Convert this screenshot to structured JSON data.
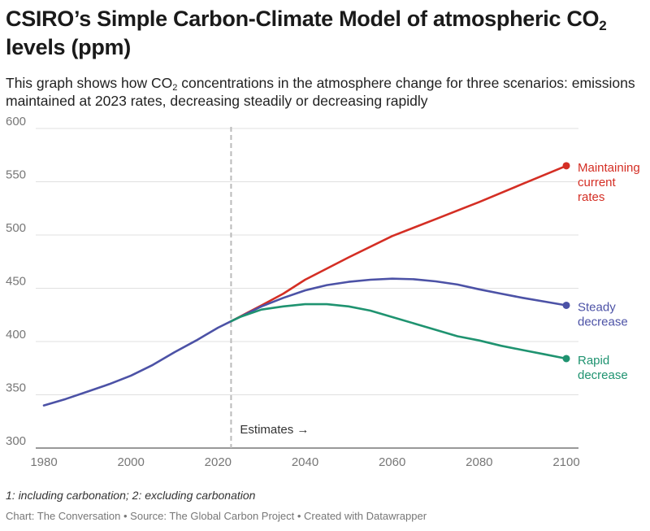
{
  "header": {
    "title_main": "CSIRO’s Simple Carbon-Climate Model of atmospheric CO",
    "title_sub": "2",
    "title_end": " levels (ppm)",
    "subtitle_a": "This graph shows how CO",
    "subtitle_sub": "2",
    "subtitle_b": " concentrations in the atmosphere change for three scenarios: emissions maintained at 2023 rates, decreasing steadily or decreasing rapidly"
  },
  "notes": "1: including carbonation; 2: excluding carbonation",
  "footer": "Chart: The Conversation • Source: The Global Carbon Project • Created with Datawrapper",
  "colors": {
    "maintaining": "#d42e24",
    "steady": "#4c52a6",
    "rapid": "#1f9370",
    "grid": "#e0e0e0",
    "divider": "#bbbbbb"
  },
  "chart_data": {
    "type": "line",
    "title": "CSIRO’s Simple Carbon-Climate Model of atmospheric CO2 levels (ppm)",
    "xlabel": "",
    "ylabel": "",
    "xlim": [
      1980,
      2100
    ],
    "ylim": [
      300,
      600
    ],
    "x_ticks": [
      1980,
      2000,
      2020,
      2040,
      2060,
      2080,
      2100
    ],
    "y_ticks": [
      300,
      350,
      400,
      450,
      500,
      550,
      600
    ],
    "annotation": {
      "x": 2023,
      "text": "Estimates →"
    },
    "series": [
      {
        "name": "Maintaining current rates",
        "label_lines": [
          "Maintaining",
          "current",
          "rates"
        ],
        "color": "#d42e24",
        "x": [
          2023,
          2030,
          2035,
          2040,
          2050,
          2060,
          2070,
          2080,
          2090,
          2100
        ],
        "y": [
          419,
          434,
          445,
          458,
          479,
          499,
          515,
          531,
          548,
          565
        ]
      },
      {
        "name": "Steady decrease",
        "label_lines": [
          "Steady",
          "decrease"
        ],
        "color": "#4c52a6",
        "x": [
          1980,
          1985,
          1990,
          1995,
          2000,
          2005,
          2010,
          2015,
          2020,
          2023,
          2025,
          2030,
          2035,
          2040,
          2045,
          2050,
          2055,
          2060,
          2065,
          2070,
          2075,
          2080,
          2085,
          2090,
          2095,
          2100
        ],
        "y": [
          340,
          346,
          353,
          360,
          368,
          378,
          390,
          401,
          413,
          419,
          423,
          433,
          441,
          448,
          453,
          456,
          458,
          459,
          458.5,
          456.5,
          453.5,
          449,
          445,
          441,
          437.5,
          434
        ]
      },
      {
        "name": "Rapid decrease",
        "label_lines": [
          "Rapid",
          "decrease"
        ],
        "color": "#1f9370",
        "x": [
          2023,
          2025,
          2030,
          2035,
          2040,
          2045,
          2050,
          2055,
          2060,
          2065,
          2070,
          2075,
          2080,
          2085,
          2090,
          2095,
          2100
        ],
        "y": [
          419,
          423,
          430,
          433,
          435,
          435,
          433,
          429,
          423,
          417,
          411,
          405,
          401,
          396,
          392,
          388,
          384
        ]
      }
    ]
  }
}
